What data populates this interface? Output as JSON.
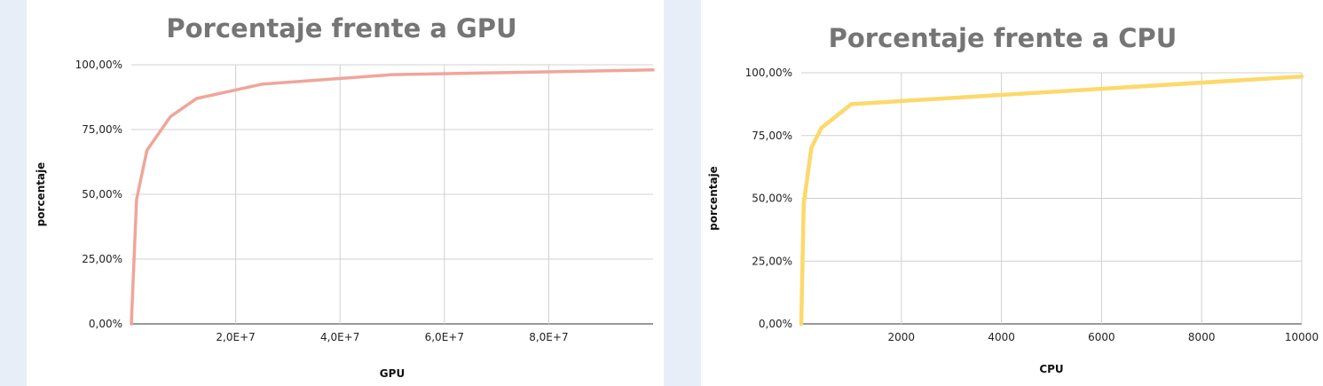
{
  "chart_data": [
    {
      "type": "line",
      "title": "Porcentaje frente a GPU",
      "xlabel": "GPU",
      "ylabel": "porcentaje",
      "xlim": [
        0,
        100000000
      ],
      "ylim": [
        0,
        1
      ],
      "x_ticks": [
        20000000,
        40000000,
        60000000,
        80000000
      ],
      "x_tick_labels": [
        "2,0E+7",
        "4,0E+7",
        "6,0E+7",
        "8,0E+7"
      ],
      "y_ticks": [
        0,
        0.25,
        0.5,
        0.75,
        1
      ],
      "y_tick_labels": [
        "0,00%",
        "25,00%",
        "50,00%",
        "75,00%",
        "100,00%"
      ],
      "grid": true,
      "color": "#f0a59a",
      "series": [
        {
          "x": [
            0,
            1000000,
            3000000,
            7500000,
            12500000,
            25000000,
            50000000,
            100000000
          ],
          "values": [
            0,
            0.48,
            0.67,
            0.8,
            0.87,
            0.925,
            0.962,
            0.98
          ]
        }
      ]
    },
    {
      "type": "line",
      "title": "Porcentaje frente a CPU",
      "xlabel": "CPU",
      "ylabel": "porcentaje",
      "xlim": [
        0,
        10000
      ],
      "ylim": [
        0,
        1
      ],
      "x_ticks": [
        2000,
        4000,
        6000,
        8000,
        10000
      ],
      "x_tick_labels": [
        "2000",
        "4000",
        "6000",
        "8000",
        "10000"
      ],
      "y_ticks": [
        0,
        0.25,
        0.5,
        0.75,
        1
      ],
      "y_tick_labels": [
        "0,00%",
        "25,00%",
        "50,00%",
        "75,00%",
        "100,00%"
      ],
      "grid": true,
      "color": "#fbd96b",
      "series": [
        {
          "x": [
            0,
            50,
            100,
            200,
            400,
            1000,
            10000
          ],
          "values": [
            0,
            0.48,
            0.55,
            0.7,
            0.78,
            0.875,
            0.985
          ]
        }
      ]
    }
  ]
}
